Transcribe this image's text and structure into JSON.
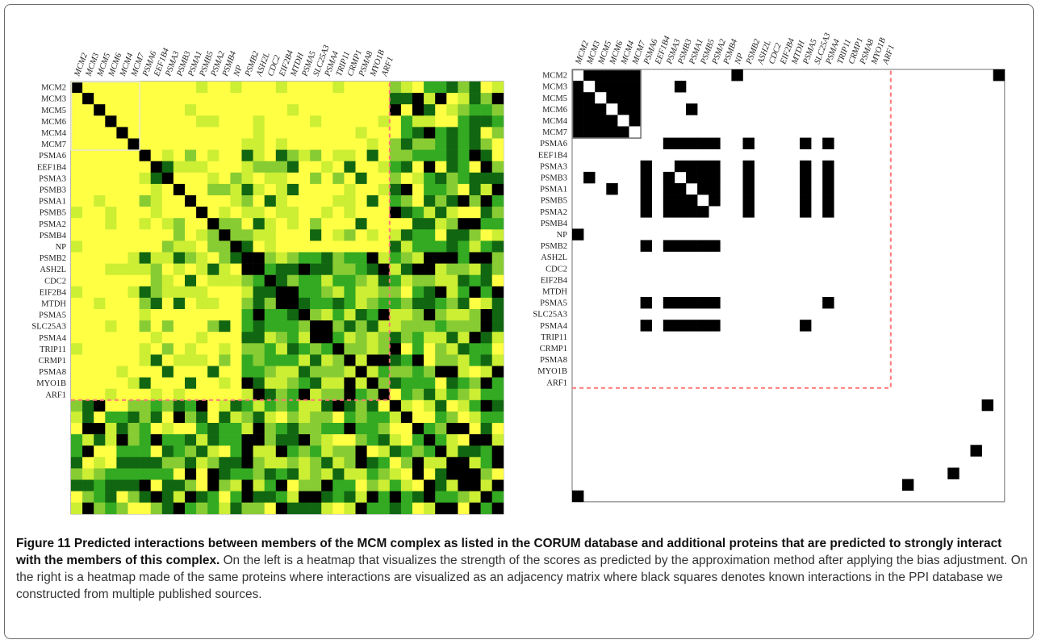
{
  "figure": {
    "caption_label": "Figure 11",
    "caption_title": "Predicted interactions between members of the MCM complex as listed in the CORUM database and additional proteins that are predicted to strongly interact with the members of this complex.",
    "caption_body": "On the left is a heatmap that visualizes the strength of the scores as predicted by the approximation method after applying the bias adjustment. On the right is a heatmap made of the same proteins where interactions are visualized as an adjacency matrix where black squares denotes known interactions in the PPI database we constructed from multiple published sources."
  },
  "colors": {
    "yellow": "#ffff44",
    "black": "#000000",
    "dashed_line": "#ff7777",
    "mcm_box": "#e8e8c8"
  },
  "chart_data": [
    {
      "type": "heatmap",
      "panel": "left",
      "title": "",
      "color_scale": [
        "#ffff44",
        "#ccee33",
        "#88cc33",
        "#33aa22",
        "#116611",
        "#000000"
      ],
      "proteins": [
        "MCM2",
        "MCM3",
        "MCM5",
        "MCM6",
        "MCM4",
        "MCM7",
        "PSMA6",
        "EEF1B4",
        "PSMA3",
        "PSMB3",
        "PSMA1",
        "PSMB5",
        "PSMA2",
        "PSMB4",
        "NP",
        "PSMB2",
        "ASH2L",
        "CDC2",
        "EIF2B4",
        "MTDH",
        "PSMA5",
        "SLC25A3",
        "PSMA4",
        "TRIP11",
        "CRMP1",
        "PSMA8",
        "MYO1B",
        "ARF1"
      ],
      "unlabeled_extra_proteins": 10,
      "complex_box_size": 6,
      "dashed_separator_after": 28
    },
    {
      "type": "heatmap",
      "panel": "right",
      "title": "",
      "proteins": [
        "MCM2",
        "MCM3",
        "MCM5",
        "MCM6",
        "MCM4",
        "MCM7",
        "PSMA6",
        "EEF1B4",
        "PSMA3",
        "PSMB3",
        "PSMA1",
        "PSMB5",
        "PSMA2",
        "PSMB4",
        "NP",
        "PSMB2",
        "ASH2L",
        "CDC2",
        "EIF2B4",
        "MTDH",
        "PSMA5",
        "SLC25A3",
        "PSMA4",
        "TRIP11",
        "CRMP1",
        "PSMA8",
        "MYO1B",
        "ARF1"
      ],
      "unlabeled_extra_proteins": 10,
      "value_encoding": "black = known interaction",
      "known_interactions": [
        [
          0,
          1
        ],
        [
          0,
          2
        ],
        [
          0,
          3
        ],
        [
          0,
          4
        ],
        [
          0,
          5
        ],
        [
          1,
          2
        ],
        [
          1,
          3
        ],
        [
          1,
          4
        ],
        [
          1,
          5
        ],
        [
          2,
          3
        ],
        [
          2,
          4
        ],
        [
          2,
          5
        ],
        [
          3,
          4
        ],
        [
          3,
          5
        ],
        [
          4,
          5
        ],
        [
          0,
          14
        ],
        [
          0,
          37
        ],
        [
          3,
          10
        ],
        [
          9,
          1
        ],
        [
          6,
          8
        ],
        [
          6,
          9
        ],
        [
          6,
          10
        ],
        [
          6,
          11
        ],
        [
          6,
          12
        ],
        [
          6,
          15
        ],
        [
          6,
          20
        ],
        [
          6,
          22
        ],
        [
          8,
          9
        ],
        [
          8,
          10
        ],
        [
          8,
          11
        ],
        [
          8,
          12
        ],
        [
          9,
          10
        ],
        [
          9,
          11
        ],
        [
          9,
          12
        ],
        [
          10,
          11
        ],
        [
          10,
          12
        ],
        [
          11,
          12
        ],
        [
          8,
          15
        ],
        [
          9,
          15
        ],
        [
          10,
          15
        ],
        [
          11,
          15
        ],
        [
          12,
          15
        ],
        [
          8,
          20
        ],
        [
          8,
          22
        ],
        [
          9,
          20
        ],
        [
          9,
          22
        ],
        [
          10,
          20
        ],
        [
          10,
          22
        ],
        [
          11,
          20
        ],
        [
          11,
          22
        ],
        [
          12,
          20
        ],
        [
          12,
          22
        ],
        [
          20,
          22
        ],
        [
          29,
          36
        ],
        [
          33,
          35
        ]
      ]
    }
  ]
}
